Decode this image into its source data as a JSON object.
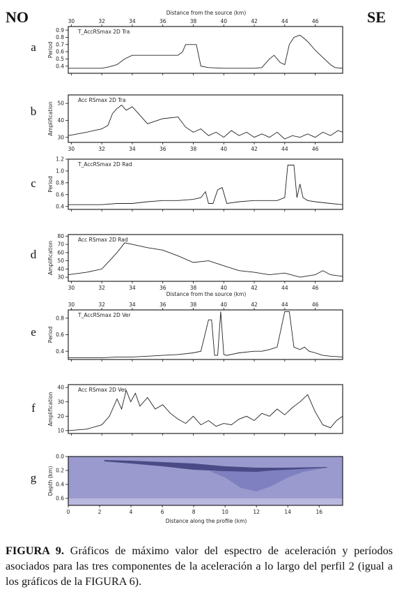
{
  "header": {
    "left": "NO",
    "right": "SE"
  },
  "top_axis_label": "Distance from the source (km)",
  "mid_axis_label": "Distance from the source (km)",
  "bottom_axis_label": "Distance along the profile (km)",
  "caption": {
    "label": "FIGURA 9.",
    "text": "Gráficos de máximo valor del espectro de aceleración y períodos asociados para las tres componentes de la aceleración a lo largo del perfil 2 (igual a los gráficos de la FIGURA 6)."
  },
  "colors": {
    "line": "#222222",
    "profile_bg": "#9a9ace",
    "profile_mid": "#7f80bf",
    "profile_dark": "#4a4a86",
    "profile_base": "#b9b9e0"
  },
  "chart_data": [
    {
      "panel": "a",
      "type": "line",
      "title": "T_AccRSmax 2D Tra",
      "ylabel": "Period",
      "xlim": [
        29.8,
        47.8
      ],
      "ylim": [
        0.3,
        0.95
      ],
      "yticks": [
        0.4,
        0.5,
        0.6,
        0.7,
        0.8,
        0.9
      ],
      "xticks": [
        30,
        32,
        34,
        36,
        38,
        40,
        42,
        44,
        46
      ],
      "x": [
        29.8,
        31,
        32,
        32.5,
        33,
        33.5,
        34,
        34.5,
        35,
        36,
        37,
        37.3,
        37.5,
        38,
        38.2,
        38.5,
        39,
        40,
        41,
        42,
        42.5,
        43,
        43.3,
        43.7,
        44,
        44.3,
        44.6,
        45,
        45.3,
        45.6,
        46,
        46.5,
        47,
        47.3,
        47.8
      ],
      "y": [
        0.37,
        0.37,
        0.37,
        0.39,
        0.42,
        0.5,
        0.55,
        0.55,
        0.55,
        0.55,
        0.55,
        0.6,
        0.7,
        0.7,
        0.7,
        0.4,
        0.38,
        0.37,
        0.37,
        0.37,
        0.38,
        0.5,
        0.55,
        0.45,
        0.42,
        0.7,
        0.8,
        0.83,
        0.78,
        0.72,
        0.62,
        0.52,
        0.42,
        0.38,
        0.37
      ]
    },
    {
      "panel": "b",
      "type": "line",
      "title": "Acc RSmax 2D Tra",
      "ylabel": "Amplification",
      "xlim": [
        29.8,
        47.8
      ],
      "ylim": [
        27,
        55
      ],
      "yticks": [
        30,
        40,
        50
      ],
      "xticks": [
        30,
        32,
        34,
        36,
        38,
        40,
        42,
        44,
        46
      ],
      "x": [
        29.8,
        31,
        32,
        32.4,
        32.7,
        33,
        33.3,
        33.6,
        34,
        34.5,
        35,
        36,
        37,
        37.5,
        38,
        38.5,
        39,
        39.5,
        40,
        40.5,
        41,
        41.5,
        42,
        42.5,
        43,
        43.5,
        44,
        44.5,
        45,
        45.5,
        46,
        46.5,
        47,
        47.5,
        47.8
      ],
      "y": [
        31,
        33,
        35,
        37,
        44,
        47,
        49,
        46,
        48,
        43,
        38,
        41,
        42,
        36,
        33,
        35,
        31,
        33,
        30,
        34,
        31,
        33,
        30,
        32,
        30,
        33,
        29,
        31,
        30,
        32,
        30,
        33,
        31,
        34,
        33
      ]
    },
    {
      "panel": "c",
      "type": "line",
      "title": "T_AccRSmax 2D Rad",
      "ylabel": "Period",
      "xlim": [
        29.8,
        47.8
      ],
      "ylim": [
        0.35,
        1.2
      ],
      "yticks": [
        0.4,
        0.6,
        0.8,
        1.0,
        1.2
      ],
      "xticks": [
        30,
        32,
        34,
        36,
        38,
        40,
        42,
        44,
        46
      ],
      "x": [
        29.8,
        31,
        32,
        33,
        34,
        35,
        36,
        37,
        38,
        38.5,
        38.8,
        39,
        39.3,
        39.6,
        39.9,
        40.2,
        41,
        42,
        43,
        43.5,
        44,
        44.2,
        44.4,
        44.6,
        44.8,
        45,
        45.2,
        45.5,
        46,
        47,
        47.8
      ],
      "y": [
        0.43,
        0.43,
        0.43,
        0.45,
        0.45,
        0.48,
        0.5,
        0.5,
        0.52,
        0.55,
        0.65,
        0.45,
        0.45,
        0.68,
        0.72,
        0.45,
        0.48,
        0.5,
        0.5,
        0.5,
        0.55,
        1.1,
        1.1,
        1.1,
        0.55,
        0.78,
        0.55,
        0.5,
        0.48,
        0.45,
        0.43
      ]
    },
    {
      "panel": "d",
      "type": "line",
      "title": "Acc RSmax 2D Rad",
      "ylabel": "Amplification",
      "xlim": [
        29.8,
        47.8
      ],
      "ylim": [
        25,
        82
      ],
      "yticks": [
        30,
        40,
        50,
        60,
        70,
        80
      ],
      "xticks": [
        30,
        32,
        34,
        36,
        38,
        40,
        42,
        44,
        46
      ],
      "x": [
        29.8,
        31,
        32,
        33,
        33.5,
        34,
        35,
        36,
        37,
        38,
        39,
        40,
        41,
        42,
        43,
        44,
        45,
        46,
        46.5,
        47,
        47.8
      ],
      "y": [
        33,
        36,
        40,
        60,
        72,
        70,
        66,
        63,
        56,
        48,
        50,
        44,
        38,
        36,
        33,
        35,
        30,
        33,
        38,
        33,
        31
      ]
    },
    {
      "panel": "e",
      "type": "line",
      "title": "T_AccRSmax 2D Ver",
      "ylabel": "Period",
      "xlim": [
        29.8,
        47.8
      ],
      "ylim": [
        0.3,
        0.9
      ],
      "yticks": [
        0.4,
        0.6,
        0.8
      ],
      "xticks": [
        30,
        32,
        34,
        36,
        38,
        40,
        42,
        44,
        46
      ],
      "x": [
        29.8,
        31,
        32,
        33,
        34,
        35,
        36,
        37,
        38,
        38.5,
        39,
        39.2,
        39.4,
        39.6,
        39.8,
        40,
        40.2,
        41,
        42,
        42.5,
        43,
        43.5,
        44,
        44.3,
        44.6,
        45,
        45.3,
        45.6,
        46,
        46.5,
        47,
        47.8
      ],
      "y": [
        0.32,
        0.32,
        0.32,
        0.33,
        0.33,
        0.34,
        0.35,
        0.36,
        0.38,
        0.4,
        0.78,
        0.78,
        0.35,
        0.35,
        0.88,
        0.36,
        0.35,
        0.38,
        0.4,
        0.4,
        0.42,
        0.45,
        0.88,
        0.88,
        0.45,
        0.42,
        0.45,
        0.4,
        0.38,
        0.35,
        0.34,
        0.33
      ]
    },
    {
      "panel": "f",
      "type": "line",
      "title": "Acc RSmax 2D Ver",
      "ylabel": "Amplification",
      "xlim": [
        29.8,
        47.8
      ],
      "ylim": [
        8,
        42
      ],
      "yticks": [
        10,
        20,
        30,
        40
      ],
      "xticks": [
        30,
        32,
        34,
        36,
        38,
        40,
        42,
        44,
        46
      ],
      "x": [
        29.8,
        31,
        32,
        32.5,
        33,
        33.3,
        33.6,
        33.9,
        34.2,
        34.5,
        35,
        35.5,
        36,
        36.5,
        37,
        37.5,
        38,
        38.5,
        39,
        39.5,
        40,
        40.5,
        41,
        41.5,
        42,
        42.5,
        43,
        43.5,
        44,
        44.5,
        45,
        45.5,
        46,
        46.5,
        47,
        47.4,
        47.8
      ],
      "y": [
        10,
        11,
        14,
        20,
        32,
        25,
        38,
        30,
        36,
        27,
        33,
        25,
        28,
        22,
        18,
        15,
        20,
        14,
        17,
        13,
        15,
        14,
        18,
        20,
        17,
        22,
        20,
        25,
        21,
        26,
        30,
        35,
        23,
        14,
        12,
        17,
        20
      ]
    },
    {
      "panel": "g",
      "type": "heatmap",
      "ylabel": "Depth (km)",
      "xlim": [
        0,
        17.5
      ],
      "ylim": [
        0.0,
        0.7
      ],
      "xticks": [
        0,
        2,
        4,
        6,
        8,
        10,
        12,
        14,
        16
      ],
      "yticks": [
        0.0,
        0.2,
        0.4,
        0.6
      ],
      "profile": {
        "dark_x": [
          2.3,
          4,
          6,
          8,
          9,
          10,
          12,
          13,
          14,
          16.5
        ],
        "dark_top": [
          0.05,
          0.06,
          0.08,
          0.1,
          0.12,
          0.14,
          0.16,
          0.16,
          0.16,
          0.15
        ],
        "dark_bot": [
          0.07,
          0.1,
          0.14,
          0.19,
          0.2,
          0.21,
          0.22,
          0.2,
          0.19,
          0.16
        ],
        "mid_x": [
          9,
          10,
          11,
          12,
          13,
          14,
          15,
          16.5
        ],
        "mid_bot": [
          0.21,
          0.3,
          0.45,
          0.5,
          0.42,
          0.3,
          0.22,
          0.16
        ],
        "base_depth": 0.6
      }
    }
  ]
}
